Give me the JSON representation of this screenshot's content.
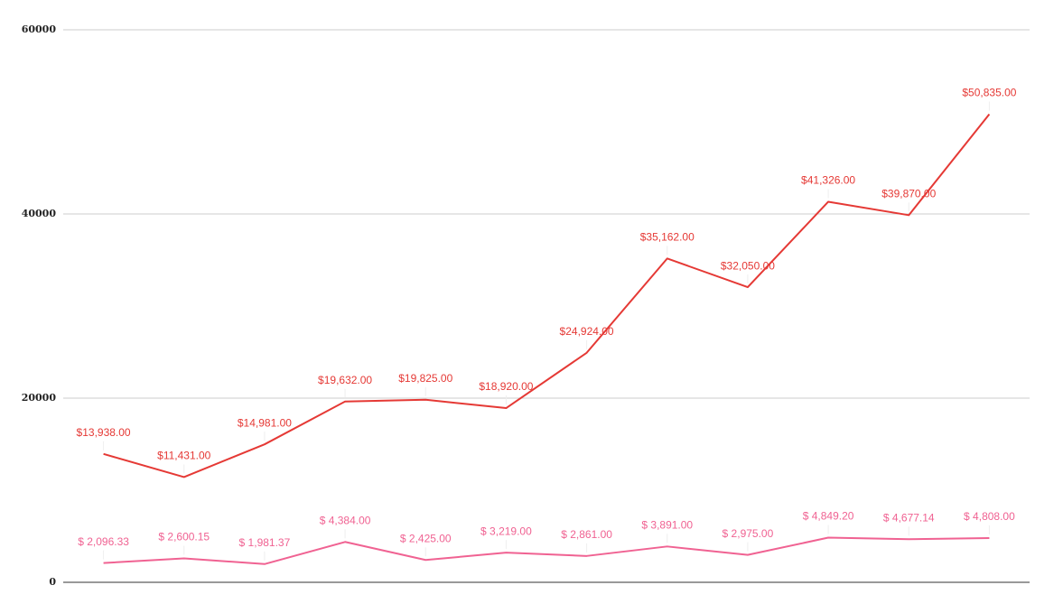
{
  "chart_data": {
    "type": "line",
    "categories": [
      null,
      null,
      null,
      null,
      null,
      null,
      null,
      null,
      null,
      null,
      null,
      null
    ],
    "series": [
      {
        "color": "#e53935",
        "values": [
          13938,
          11431,
          14981,
          19632,
          19825,
          18920,
          24924,
          35162,
          32050,
          41326,
          39870,
          50835
        ],
        "value_labels": [
          "$13,938.00",
          "$11,431.00",
          "$14,981.00",
          "$19,632.00",
          "$19,825.00",
          "$18,920.00",
          "$24,924.00",
          "$35,162.00",
          "$32,050.00",
          "$41,326.00",
          "$39,870.00",
          "$50,835.00"
        ]
      },
      {
        "color": "#f06292",
        "values": [
          2096.33,
          2600.15,
          1981.37,
          4384,
          2425,
          3219,
          2861,
          3891,
          2975,
          4849.2,
          4677.14,
          4808
        ],
        "value_labels": [
          "$ 2,096.33",
          "$ 2,600.15",
          "$ 1,981.37",
          "$ 4,384.00",
          "$ 2,425.00",
          "$ 3,219.00",
          "$ 2,861.00",
          "$ 3,891.00",
          "$ 2,975.00",
          "$ 4,849.20",
          "$ 4,677.14",
          "$ 4,808.00"
        ]
      }
    ],
    "ylim": [
      0,
      60000
    ],
    "yticks": [
      0,
      20000,
      40000,
      60000
    ],
    "grid": true
  }
}
